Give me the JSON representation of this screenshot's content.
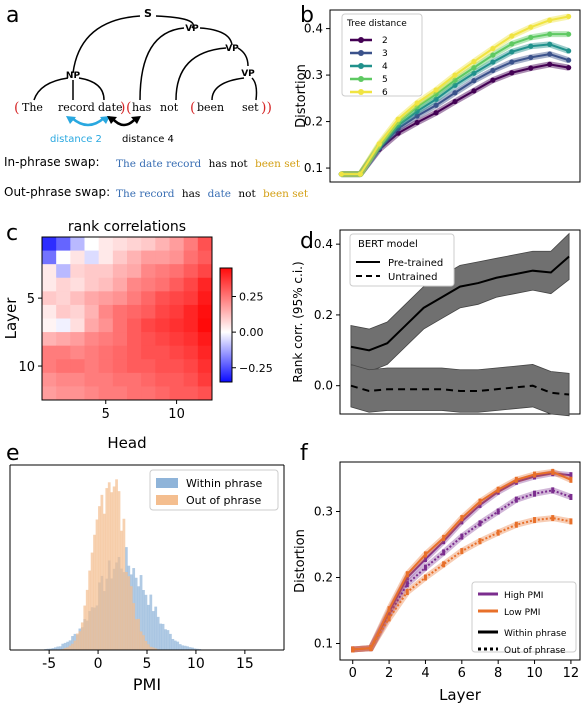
{
  "panel_letters": {
    "a": "a",
    "b": "b",
    "c": "c",
    "d": "d",
    "e": "e",
    "f": "f"
  },
  "panel_a": {
    "nodes": {
      "S": "S",
      "VP1": "VP",
      "VP2": "VP",
      "VP3": "VP",
      "NP": "NP"
    },
    "words": [
      {
        "text": "The",
        "paren": "("
      },
      {
        "text": "record"
      },
      {
        "text": "date",
        "paren_close": ")"
      },
      {
        "text": "has",
        "paren": "("
      },
      {
        "text": "not"
      },
      {
        "text": "been",
        "paren": "("
      },
      {
        "text": "set",
        "paren_close": "))"
      }
    ],
    "distance2_label": "distance 2",
    "distance4_label": "distance 4",
    "inphrase_label": "In-phrase swap:",
    "outphrase_label": "Out-phrase swap:",
    "inphrase_tokens": [
      {
        "text": "The date record",
        "color": "#3a6fb4"
      },
      {
        "text": "has not",
        "color": "#000000"
      },
      {
        "text": "been set",
        "color": "#d4a017"
      }
    ],
    "outphrase_tokens": [
      {
        "text": "The record",
        "color": "#3a6fb4"
      },
      {
        "text": "has",
        "color": "#000000"
      },
      {
        "text": "date",
        "color": "#3a6fb4"
      },
      {
        "text": "not",
        "color": "#000000"
      },
      {
        "text": "been set",
        "color": "#d4a017"
      }
    ],
    "colors": {
      "paren": "#d62728",
      "arrow2": "#29a8e0",
      "arrow4": "#000000"
    }
  },
  "chart_data": [
    {
      "id": "b",
      "type": "line",
      "ylabel": "Distortion",
      "ylim": [
        0.07,
        0.44
      ],
      "yticks": [
        0.1,
        0.2,
        0.3,
        0.4
      ],
      "x": [
        0,
        1,
        2,
        3,
        4,
        5,
        6,
        7,
        8,
        9,
        10,
        11,
        12
      ],
      "legend_title": "Tree distance",
      "legend_position": "top-left",
      "series": [
        {
          "name": "2",
          "color": "#440154",
          "values": [
            0.087,
            0.087,
            0.14,
            0.175,
            0.198,
            0.219,
            0.243,
            0.266,
            0.289,
            0.305,
            0.315,
            0.323,
            0.316
          ]
        },
        {
          "name": "3",
          "color": "#3b528b",
          "values": [
            0.087,
            0.087,
            0.143,
            0.185,
            0.212,
            0.235,
            0.262,
            0.288,
            0.31,
            0.328,
            0.338,
            0.345,
            0.332
          ]
        },
        {
          "name": "4",
          "color": "#21918c",
          "values": [
            0.087,
            0.087,
            0.146,
            0.192,
            0.222,
            0.248,
            0.278,
            0.304,
            0.328,
            0.35,
            0.362,
            0.366,
            0.352
          ]
        },
        {
          "name": "5",
          "color": "#5ec962",
          "values": [
            0.087,
            0.087,
            0.149,
            0.198,
            0.232,
            0.259,
            0.289,
            0.316,
            0.343,
            0.367,
            0.381,
            0.388,
            0.388
          ]
        },
        {
          "name": "6",
          "color": "#f0e442",
          "values": [
            0.087,
            0.087,
            0.152,
            0.205,
            0.24,
            0.268,
            0.3,
            0.329,
            0.357,
            0.384,
            0.403,
            0.418,
            0.426
          ]
        }
      ]
    },
    {
      "id": "c",
      "type": "heatmap",
      "title": "rank correlations",
      "xlabel": "Head",
      "ylabel": "Layer",
      "xticks": [
        5,
        10
      ],
      "yticks": [
        5,
        10
      ],
      "rows": 12,
      "cols": 12,
      "colorbar": {
        "min": -0.35,
        "max": 0.45,
        "ticks": [
          -0.25,
          0.0,
          0.25
        ],
        "tick_labels": [
          "−0.25",
          "0.00",
          "0.25"
        ]
      },
      "values": [
        [
          -0.3,
          -0.22,
          -0.1,
          0.0,
          0.04,
          0.06,
          0.08,
          0.1,
          0.14,
          0.18,
          0.24,
          0.32
        ],
        [
          -0.2,
          0.0,
          0.05,
          -0.05,
          0.04,
          0.1,
          0.14,
          0.18,
          0.18,
          0.2,
          0.26,
          0.3
        ],
        [
          0.04,
          -0.1,
          0.08,
          0.1,
          0.1,
          0.14,
          0.16,
          0.22,
          0.24,
          0.26,
          0.3,
          0.34
        ],
        [
          0.04,
          0.08,
          0.06,
          0.1,
          0.12,
          0.16,
          0.22,
          0.24,
          0.26,
          0.3,
          0.34,
          0.4
        ],
        [
          0.1,
          0.08,
          0.12,
          0.16,
          0.18,
          0.2,
          0.24,
          0.28,
          0.32,
          0.34,
          0.36,
          0.42
        ],
        [
          0.04,
          0.1,
          0.08,
          0.14,
          0.22,
          0.26,
          0.28,
          0.3,
          0.34,
          0.36,
          0.4,
          0.44
        ],
        [
          0.02,
          -0.02,
          0.06,
          0.16,
          0.2,
          0.26,
          0.3,
          0.34,
          0.36,
          0.38,
          0.4,
          0.45
        ],
        [
          0.14,
          0.16,
          0.18,
          0.22,
          0.24,
          0.26,
          0.3,
          0.32,
          0.34,
          0.36,
          0.38,
          0.42
        ],
        [
          0.24,
          0.24,
          0.22,
          0.24,
          0.26,
          0.28,
          0.3,
          0.32,
          0.32,
          0.34,
          0.36,
          0.4
        ],
        [
          0.24,
          0.26,
          0.26,
          0.24,
          0.26,
          0.28,
          0.3,
          0.3,
          0.32,
          0.32,
          0.34,
          0.38
        ],
        [
          0.2,
          0.22,
          0.22,
          0.24,
          0.24,
          0.26,
          0.26,
          0.28,
          0.3,
          0.3,
          0.32,
          0.36
        ],
        [
          0.18,
          0.2,
          0.2,
          0.22,
          0.24,
          0.24,
          0.26,
          0.26,
          0.28,
          0.3,
          0.3,
          0.32
        ]
      ]
    },
    {
      "id": "d",
      "type": "line",
      "ylabel": "Rank corr. (95% c.i.)",
      "ylim": [
        -0.08,
        0.44
      ],
      "yticks": [
        0.0,
        0.2,
        0.4
      ],
      "ytick_labels": [
        "0.0",
        "0.2",
        "0.4"
      ],
      "x": [
        0,
        1,
        2,
        3,
        4,
        5,
        6,
        7,
        8,
        9,
        10,
        11,
        12
      ],
      "legend_title": "BERT model",
      "legend_position": "top-left",
      "series": [
        {
          "name": "Pre-trained",
          "style": "solid",
          "color": "#000000",
          "values": [
            0.11,
            0.1,
            0.12,
            0.17,
            0.22,
            0.25,
            0.28,
            0.29,
            0.305,
            0.315,
            0.325,
            0.32,
            0.365
          ],
          "lower": [
            0.05,
            0.04,
            0.06,
            0.11,
            0.16,
            0.19,
            0.22,
            0.23,
            0.25,
            0.26,
            0.27,
            0.26,
            0.3
          ],
          "upper": [
            0.17,
            0.16,
            0.18,
            0.23,
            0.28,
            0.31,
            0.34,
            0.35,
            0.36,
            0.37,
            0.38,
            0.38,
            0.43
          ]
        },
        {
          "name": "Untrained",
          "style": "dashed",
          "color": "#000000",
          "values": [
            0.0,
            -0.015,
            -0.01,
            -0.01,
            -0.01,
            -0.01,
            -0.015,
            -0.015,
            -0.01,
            -0.005,
            0.0,
            -0.02,
            -0.025
          ],
          "lower": [
            -0.06,
            -0.075,
            -0.07,
            -0.07,
            -0.07,
            -0.07,
            -0.075,
            -0.075,
            -0.07,
            -0.065,
            -0.06,
            -0.08,
            -0.085
          ],
          "upper": [
            0.06,
            0.045,
            0.05,
            0.05,
            0.05,
            0.05,
            0.045,
            0.045,
            0.05,
            0.055,
            0.06,
            0.04,
            0.035
          ]
        }
      ],
      "band_color": "#707070"
    },
    {
      "id": "e",
      "type": "histogram",
      "xlabel": "PMI",
      "xlim": [
        -9,
        19
      ],
      "xticks": [
        -5,
        0,
        5,
        10,
        15
      ],
      "xtick_labels": [
        "-5",
        "0",
        "5",
        "10",
        "15"
      ],
      "legend_position": "top-right",
      "series": [
        {
          "name": "Within phrase",
          "color": "#8fb4d9",
          "mean": 2.5,
          "sd": 2.6,
          "peak": 0.5
        },
        {
          "name": "Out of phrase",
          "color": "#f4be8f",
          "mean": 1.2,
          "sd": 1.5,
          "peak": 1.0
        }
      ]
    },
    {
      "id": "f",
      "type": "line",
      "xlabel": "Layer",
      "ylabel": "Distortion",
      "xlim": [
        -0.7,
        12.5
      ],
      "ylim": [
        0.075,
        0.375
      ],
      "xticks": [
        0,
        2,
        4,
        6,
        8,
        10,
        12
      ],
      "yticks": [
        0.1,
        0.2,
        0.3
      ],
      "legend_position": "bottom-right",
      "legend": [
        {
          "label": "High PMI",
          "color": "#7b2d8e",
          "style": "solid"
        },
        {
          "label": "Low PMI",
          "color": "#e8702a",
          "style": "solid"
        },
        {
          "label": "Within phrase",
          "color": "#000000",
          "style": "solid"
        },
        {
          "label": "Out of phrase",
          "color": "#000000",
          "style": "dotted"
        }
      ],
      "x": [
        0,
        1,
        2,
        3,
        4,
        5,
        6,
        7,
        8,
        9,
        10,
        11,
        12
      ],
      "series": [
        {
          "name": "High PMI / Within phrase",
          "color": "#7b2d8e",
          "style": "solid",
          "values": [
            0.091,
            0.093,
            0.148,
            0.2,
            0.228,
            0.255,
            0.285,
            0.31,
            0.33,
            0.345,
            0.353,
            0.358,
            0.355
          ]
        },
        {
          "name": "High PMI / Out of phrase",
          "color": "#7b2d8e",
          "style": "dotted",
          "values": [
            0.091,
            0.093,
            0.143,
            0.19,
            0.215,
            0.238,
            0.262,
            0.282,
            0.3,
            0.318,
            0.327,
            0.332,
            0.322
          ]
        },
        {
          "name": "Low PMI / Within phrase",
          "color": "#e8702a",
          "style": "solid",
          "values": [
            0.091,
            0.093,
            0.152,
            0.205,
            0.235,
            0.26,
            0.29,
            0.315,
            0.333,
            0.348,
            0.356,
            0.36,
            0.348
          ]
        },
        {
          "name": "Low PMI / Out of phrase",
          "color": "#e8702a",
          "style": "dotted",
          "values": [
            0.091,
            0.093,
            0.138,
            0.178,
            0.2,
            0.22,
            0.24,
            0.255,
            0.268,
            0.28,
            0.287,
            0.29,
            0.285
          ]
        }
      ]
    }
  ]
}
